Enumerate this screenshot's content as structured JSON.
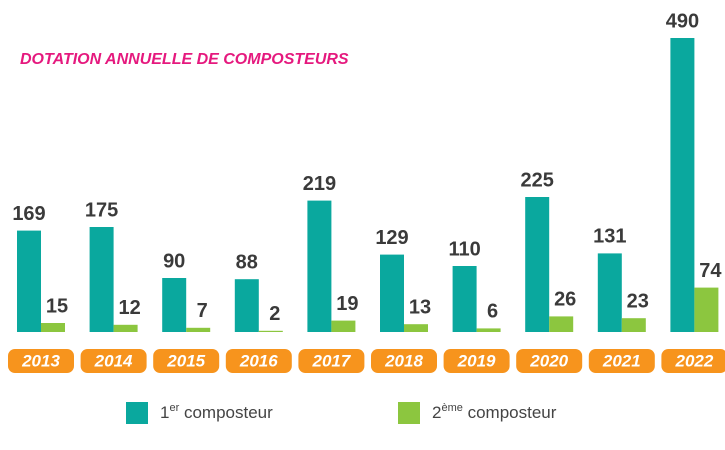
{
  "chart_data": {
    "type": "bar",
    "title": "DOTATION ANNUELLE DE COMPOSTEURS",
    "categories": [
      "2013",
      "2014",
      "2015",
      "2016",
      "2017",
      "2018",
      "2019",
      "2020",
      "2021",
      "2022"
    ],
    "series": [
      {
        "name": "1er composteur",
        "color": "#0aa89e",
        "values": [
          169,
          175,
          90,
          88,
          219,
          129,
          110,
          225,
          131,
          490
        ]
      },
      {
        "name": "2ème composteur",
        "color": "#8cc63f",
        "values": [
          15,
          12,
          7,
          2,
          19,
          13,
          6,
          26,
          23,
          74
        ]
      }
    ],
    "ylim": [
      0,
      490
    ],
    "category_color": "#f7941d"
  }
}
